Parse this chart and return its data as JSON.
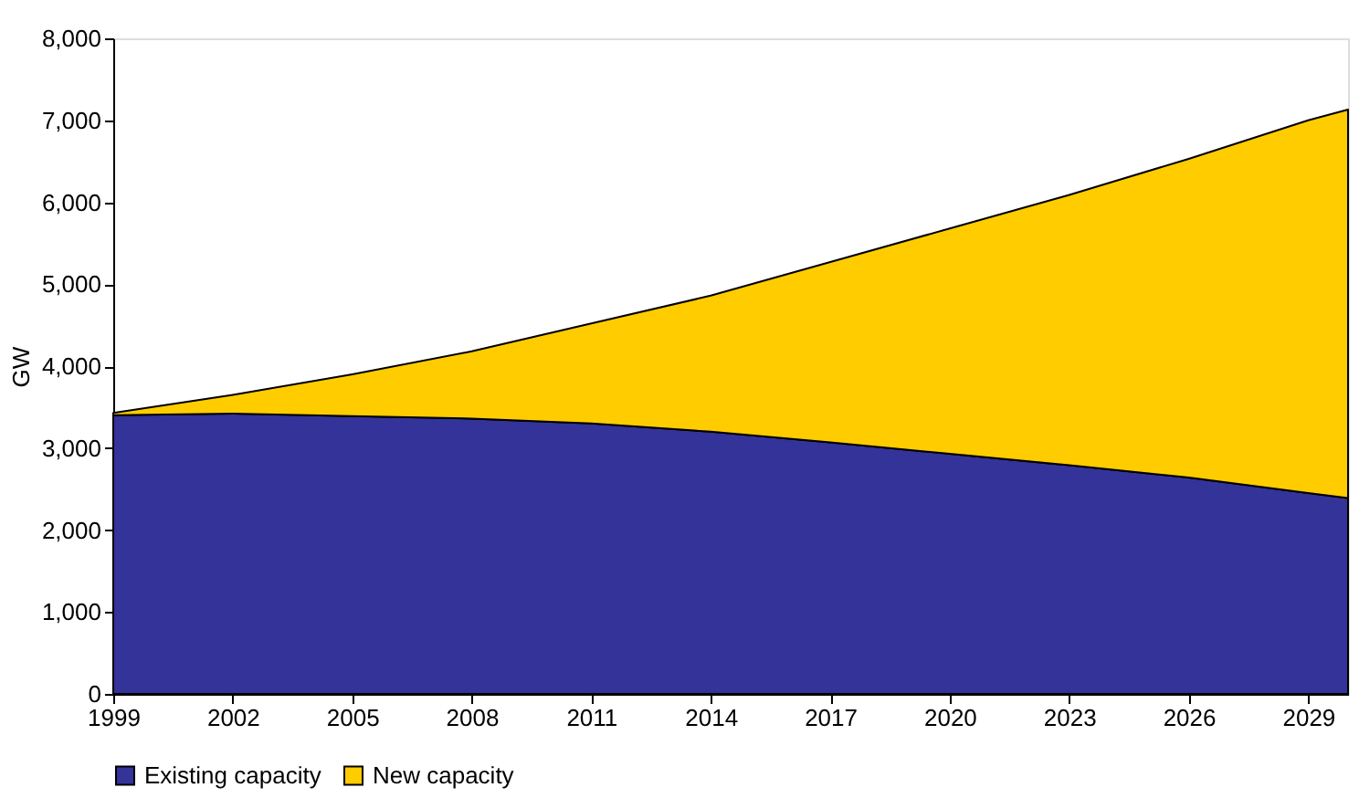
{
  "chart_data": {
    "type": "area",
    "stacked": true,
    "ylabel": "GW",
    "x": [
      1999,
      2002,
      2005,
      2008,
      2011,
      2014,
      2017,
      2020,
      2023,
      2026,
      2029,
      2030
    ],
    "series": [
      {
        "name": "Existing capacity",
        "color": "#333399",
        "values": [
          3400,
          3420,
          3390,
          3360,
          3300,
          3200,
          3070,
          2930,
          2790,
          2640,
          2450,
          2390
        ]
      },
      {
        "name": "New capacity",
        "color": "#ffcc00",
        "values": [
          30,
          230,
          510,
          820,
          1220,
          1660,
          2200,
          2750,
          3300,
          3890,
          4550,
          4740
        ]
      }
    ],
    "xlim": [
      1999,
      2030
    ],
    "xticks": [
      1999,
      2002,
      2005,
      2008,
      2011,
      2014,
      2017,
      2020,
      2023,
      2026,
      2029
    ],
    "ylim": [
      0,
      8000
    ],
    "yticks": [
      0,
      {
        "value": 1000,
        "label": "1,000"
      },
      {
        "value": 2000,
        "label": "2,000"
      },
      {
        "value": 3000,
        "label": "3,000"
      },
      {
        "value": 4000,
        "label": "4,000"
      },
      {
        "value": 5000,
        "label": "5,000"
      },
      {
        "value": 6000,
        "label": "6,000"
      },
      {
        "value": 7000,
        "label": "7,000"
      },
      {
        "value": 8000,
        "label": "8,000"
      }
    ],
    "grid": false,
    "legend": "bottom"
  }
}
